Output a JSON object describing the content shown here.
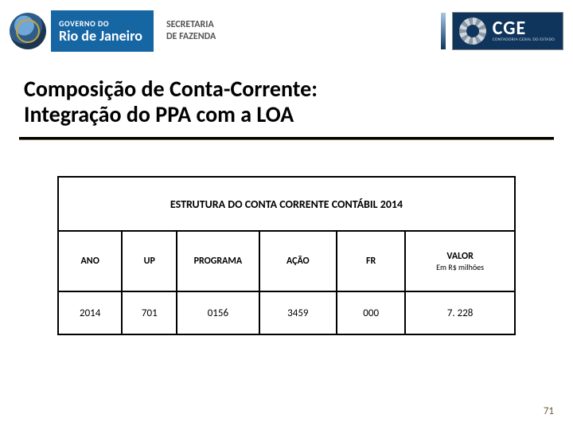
{
  "header": {
    "gov_small": "GOVERNO DO",
    "gov_big": "Rio de Janeiro",
    "sec_line1": "SECRETARIA",
    "sec_line2": "DE FAZENDA",
    "cge_big": "CGE",
    "cge_small": "CONTADORIA GERAL DO ESTADO"
  },
  "title_line1": "Composição de Conta-Corrente:",
  "title_line2": "Integração do PPA com a LOA",
  "table": {
    "caption": "ESTRUTURA DO CONTA CORRENTE CONTÁBIL 2014",
    "columns": [
      {
        "label": "ANO",
        "sub": ""
      },
      {
        "label": "UP",
        "sub": ""
      },
      {
        "label": "PROGRAMA",
        "sub": ""
      },
      {
        "label": "AÇÃO",
        "sub": ""
      },
      {
        "label": "FR",
        "sub": ""
      },
      {
        "label": "VALOR",
        "sub": "Em R$ milhões"
      }
    ],
    "row": [
      "2014",
      "701",
      "0156",
      "3459",
      "000",
      "7. 228"
    ],
    "border_color": "#000000",
    "bg_color": "#ffffff",
    "header_fontsize_pt": 12,
    "caption_fontsize_pt": 14,
    "data_fontsize_pt": 13,
    "col_widths_pct": [
      14,
      12,
      18,
      17,
      15,
      24
    ]
  },
  "page_number": "71",
  "colors": {
    "gov_blue": "#1666a3",
    "cge_navy": "#0f355c",
    "rule_black": "#000000",
    "rule_gold": "#7f6a3d",
    "page_num": "#6b5a3a",
    "background": "#ffffff"
  }
}
